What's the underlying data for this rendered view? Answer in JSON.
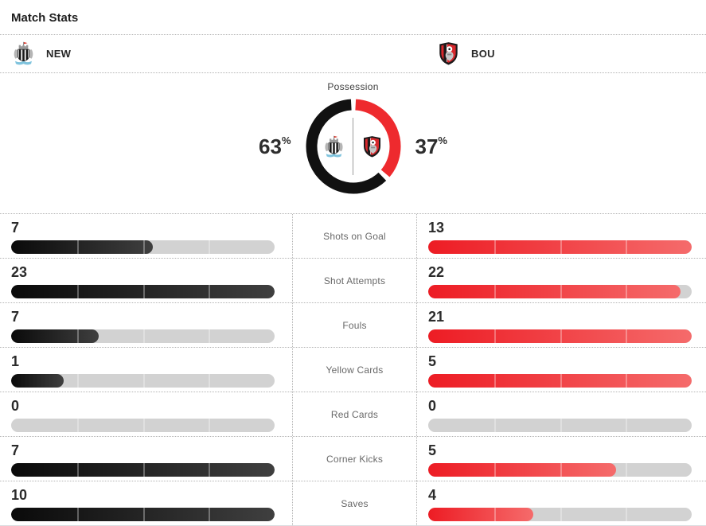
{
  "header": {
    "title": "Match Stats"
  },
  "teams": {
    "home": {
      "abbr": "NEW"
    },
    "away": {
      "abbr": "BOU"
    }
  },
  "possession": {
    "title": "Possession",
    "home_pct": 63,
    "away_pct": 37,
    "unit": "%"
  },
  "stats": {
    "rows": [
      {
        "label": "Shots on Goal",
        "home": 7,
        "away": 13
      },
      {
        "label": "Shot Attempts",
        "home": 23,
        "away": 22
      },
      {
        "label": "Fouls",
        "home": 7,
        "away": 21
      },
      {
        "label": "Yellow Cards",
        "home": 1,
        "away": 5
      },
      {
        "label": "Red Cards",
        "home": 0,
        "away": 0
      },
      {
        "label": "Corner Kicks",
        "home": 7,
        "away": 5
      },
      {
        "label": "Saves",
        "home": 10,
        "away": 4
      }
    ]
  },
  "colors": {
    "home_bar_start": "#0a0a0a",
    "home_bar_end": "#3f3f3f",
    "away_bar_start": "#ed1c24",
    "away_bar_end": "#f56b6b",
    "bar_track": "#d2d2d2",
    "possession_home": "#111111",
    "possession_away": "#ee2a2e"
  },
  "chart_data": [
    {
      "type": "pie",
      "title": "Possession",
      "labels": [
        "NEW",
        "BOU"
      ],
      "values": [
        63,
        37
      ],
      "unit": "%",
      "colors": [
        "#111111",
        "#ee2a2e"
      ],
      "donut": true,
      "start_angle_deg": 0,
      "note": "away (red) slice drawn clockwise from 12 o'clock, then home (black)"
    },
    {
      "type": "bar",
      "title": "Match Stats",
      "categories": [
        "Shots on Goal",
        "Shot Attempts",
        "Fouls",
        "Yellow Cards",
        "Red Cards",
        "Corner Kicks",
        "Saves"
      ],
      "series": [
        {
          "name": "NEW",
          "values": [
            7,
            23,
            7,
            1,
            0,
            7,
            10
          ]
        },
        {
          "name": "BOU",
          "values": [
            13,
            22,
            21,
            5,
            0,
            5,
            4
          ]
        }
      ],
      "layout": "mirrored horizontal bars, each bar length scaled to the max value of its row, 4-segment track"
    }
  ]
}
